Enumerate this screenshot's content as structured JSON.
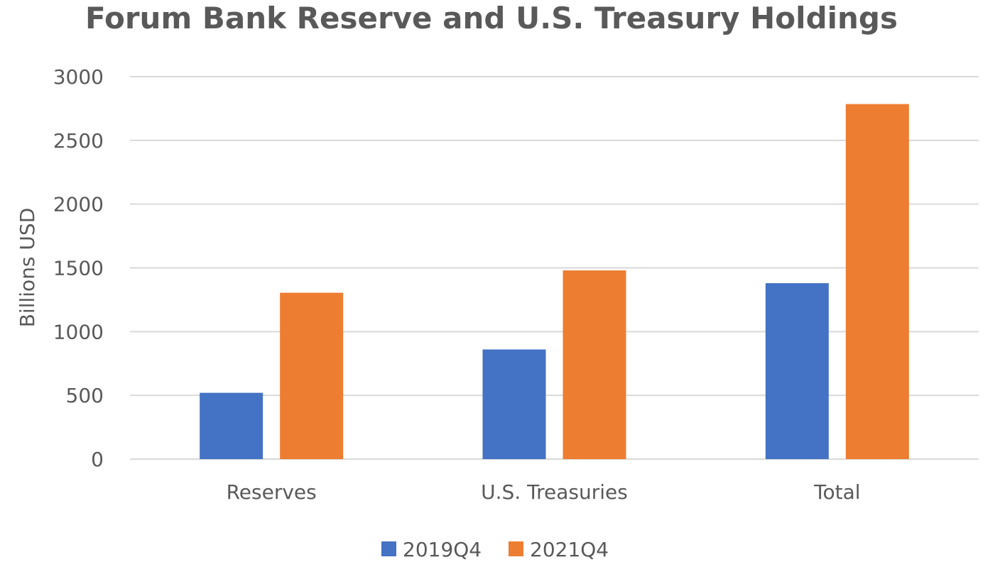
{
  "chart_data": {
    "type": "bar",
    "title": "Forum Bank Reserve and U.S. Treasury Holdings",
    "xlabel": "",
    "ylabel": "Billions USD",
    "categories": [
      "Reserves",
      "U.S. Treasuries",
      "Total"
    ],
    "series": [
      {
        "name": "2019Q4",
        "color": "#4472C4",
        "values": [
          520,
          860,
          1380
        ]
      },
      {
        "name": "2021Q4",
        "color": "#ED7D31",
        "values": [
          1305,
          1480,
          2785
        ]
      }
    ],
    "ylim": [
      0,
      3000
    ],
    "yticks": [
      0,
      500,
      1000,
      1500,
      2000,
      2500,
      3000
    ],
    "grid": true,
    "legend_position": "bottom"
  }
}
